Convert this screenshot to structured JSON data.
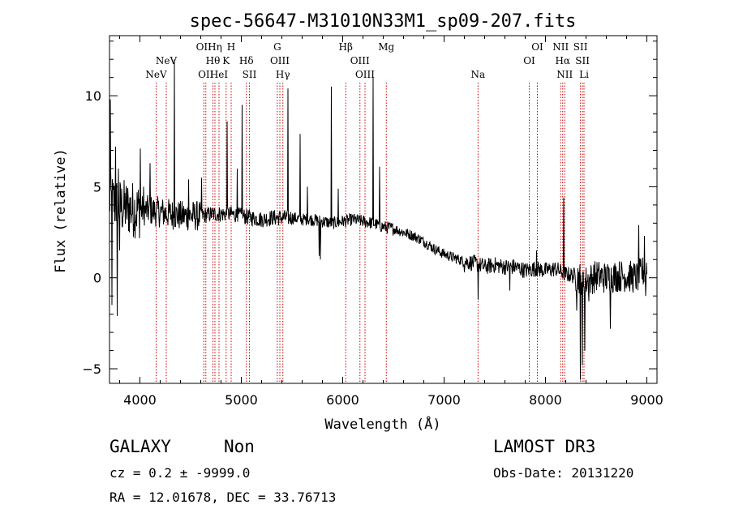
{
  "chart_data": {
    "type": "line",
    "title": "spec-56647-M31010N33M1_sp09-207.fits",
    "xlabel": "Wavelength (Å)",
    "ylabel": "Flux (relative)",
    "xlim": [
      3700,
      9100
    ],
    "ylim": [
      -5.8,
      13.3
    ],
    "xticks": [
      4000,
      5000,
      6000,
      7000,
      8000,
      9000
    ],
    "yticks": [
      -5,
      0,
      5,
      10
    ],
    "grid": false,
    "line_color": "#000000",
    "marker_color": "#cc0000",
    "spectrum_x_range": [
      3700,
      9000
    ],
    "spectrum_anchors": [
      [
        3700,
        4.3
      ],
      [
        3800,
        3.9
      ],
      [
        3900,
        3.8
      ],
      [
        4000,
        3.7
      ],
      [
        4100,
        3.7
      ],
      [
        4200,
        3.6
      ],
      [
        4300,
        3.5
      ],
      [
        4400,
        3.4
      ],
      [
        4500,
        3.4
      ],
      [
        4600,
        3.4
      ],
      [
        4700,
        3.5
      ],
      [
        4800,
        3.5
      ],
      [
        4900,
        3.5
      ],
      [
        5000,
        3.4
      ],
      [
        5100,
        3.3
      ],
      [
        5200,
        3.2
      ],
      [
        5300,
        3.3
      ],
      [
        5400,
        3.3
      ],
      [
        5500,
        3.3
      ],
      [
        5600,
        3.2
      ],
      [
        5700,
        3.2
      ],
      [
        5800,
        3.1
      ],
      [
        5900,
        3.0
      ],
      [
        6000,
        3.1
      ],
      [
        6100,
        3.2
      ],
      [
        6200,
        3.1
      ],
      [
        6300,
        3.0
      ],
      [
        6400,
        2.8
      ],
      [
        6500,
        2.7
      ],
      [
        6600,
        2.5
      ],
      [
        6700,
        2.3
      ],
      [
        6800,
        2.0
      ],
      [
        6900,
        1.6
      ],
      [
        7000,
        1.3
      ],
      [
        7100,
        1.1
      ],
      [
        7200,
        0.9
      ],
      [
        7300,
        0.8
      ],
      [
        7400,
        0.6
      ],
      [
        7500,
        0.7
      ],
      [
        7600,
        0.6
      ],
      [
        7700,
        0.6
      ],
      [
        7800,
        0.4
      ],
      [
        7900,
        0.5
      ],
      [
        8000,
        0.4
      ],
      [
        8100,
        0.5
      ],
      [
        8200,
        0.2
      ],
      [
        8300,
        0.1
      ],
      [
        8400,
        -0.2
      ],
      [
        8500,
        0.1
      ],
      [
        8600,
        0.0
      ],
      [
        8700,
        0.1
      ],
      [
        8800,
        0.1
      ],
      [
        8900,
        0.0
      ],
      [
        9000,
        0.5
      ]
    ],
    "spectrum_features": [
      [
        3710,
        9.8
      ],
      [
        3725,
        -1.5
      ],
      [
        3760,
        7.2
      ],
      [
        3775,
        -2.1
      ],
      [
        3790,
        6.0
      ],
      [
        3800,
        1.5
      ],
      [
        4003,
        7.1
      ],
      [
        4035,
        5.0
      ],
      [
        4102,
        6.3
      ],
      [
        4340,
        12.0
      ],
      [
        4480,
        5.4
      ],
      [
        4610,
        5.5
      ],
      [
        4861,
        8.6
      ],
      [
        4959,
        6.0
      ],
      [
        5007,
        9.5
      ],
      [
        5460,
        10.4
      ],
      [
        5580,
        7.9
      ],
      [
        5654,
        5.0
      ],
      [
        5770,
        1.2
      ],
      [
        5780,
        1.0
      ],
      [
        5890,
        10.5
      ],
      [
        5955,
        4.9
      ],
      [
        6300,
        11.0
      ],
      [
        6364,
        6.1
      ],
      [
        7336,
        -1.2
      ],
      [
        7200,
        0.3
      ],
      [
        7650,
        -0.7
      ],
      [
        7912,
        1.5
      ],
      [
        8180,
        4.4
      ],
      [
        8310,
        -1.8
      ],
      [
        8345,
        -5.6
      ],
      [
        8365,
        -4.8
      ],
      [
        8390,
        -4.0
      ],
      [
        8430,
        -1.3
      ],
      [
        8640,
        -2.8
      ],
      [
        8920,
        2.9
      ],
      [
        8975,
        2.3
      ],
      [
        8990,
        -1.0
      ]
    ],
    "line_markers": [
      {
        "x": 4160,
        "label": "NeV",
        "row": 3
      },
      {
        "x": 4260,
        "label": "NeV",
        "row": 2
      },
      {
        "x": 4630,
        "label": "OII",
        "row": 1
      },
      {
        "x": 4650,
        "label": "OII",
        "row": 3
      },
      {
        "x": 4720,
        "label": "Hθ",
        "row": 2
      },
      {
        "x": 4740,
        "label": "Hη",
        "row": 1
      },
      {
        "x": 4780,
        "label": "HeI",
        "row": 3
      },
      {
        "x": 4850,
        "label": "K",
        "row": 2
      },
      {
        "x": 4900,
        "label": "H",
        "row": 1
      },
      {
        "x": 5050,
        "label": "Hδ",
        "row": 2
      },
      {
        "x": 5080,
        "label": "SII",
        "row": 3
      },
      {
        "x": 5355,
        "label": "G",
        "row": 1
      },
      {
        "x": 5380,
        "label": "OIII",
        "row": 2
      },
      {
        "x": 5410,
        "label": "Hγ",
        "row": 3
      },
      {
        "x": 6030,
        "label": "Hβ",
        "row": 1
      },
      {
        "x": 6170,
        "label": "OIII",
        "row": 2
      },
      {
        "x": 6220,
        "label": "OIII",
        "row": 3
      },
      {
        "x": 6430,
        "label": "Mg",
        "row": 1
      },
      {
        "x": 7335,
        "label": "Na",
        "row": 3
      },
      {
        "x": 7840,
        "label": "OI",
        "row": 2
      },
      {
        "x": 7920,
        "label": "OI",
        "row": 1
      },
      {
        "x": 8150,
        "label": "NII",
        "row": 1
      },
      {
        "x": 8170,
        "label": "Hα",
        "row": 2
      },
      {
        "x": 8190,
        "label": "NII",
        "row": 3
      },
      {
        "x": 8345,
        "label": "SII",
        "row": 1
      },
      {
        "x": 8365,
        "label": "SII",
        "row": 2
      },
      {
        "x": 8380,
        "label": "Li",
        "row": 3
      }
    ]
  },
  "footer": {
    "object_class": "GALAXY",
    "subclass": "Non",
    "survey": "LAMOST DR3",
    "cz": "cz = 0.2 ± -9999.0",
    "obs_date": "Obs-Date: 20131220",
    "coords": "RA =  12.01678, DEC =  33.76713"
  }
}
